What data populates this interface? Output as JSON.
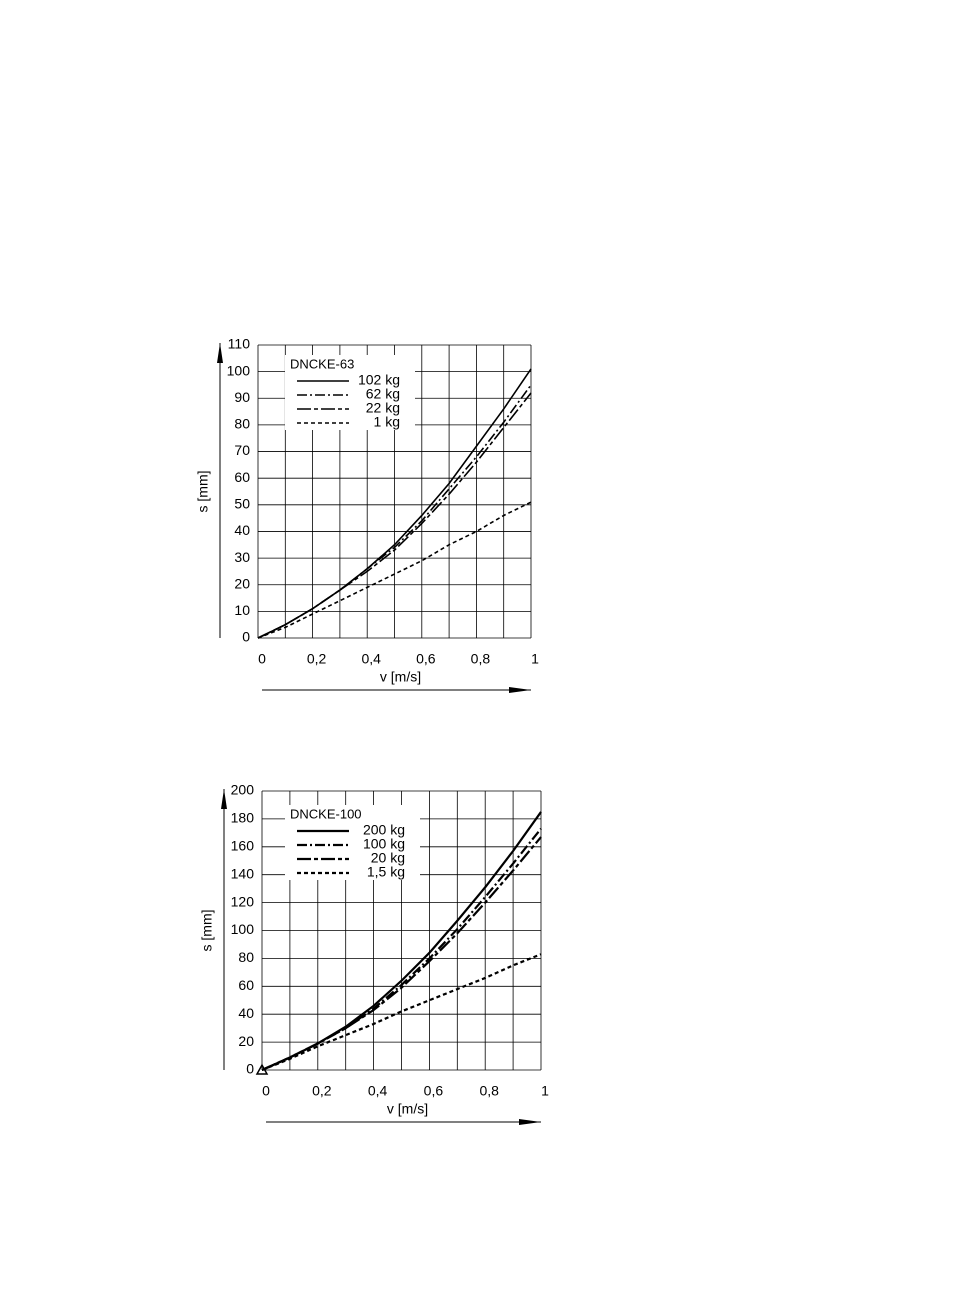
{
  "chart_data": [
    {
      "type": "line",
      "legend_title": "DNCKE-63",
      "xlabel": "v [m/s]",
      "ylabel": "s [mm]",
      "x": [
        0,
        0.1,
        0.2,
        0.3,
        0.4,
        0.5,
        0.6,
        0.7,
        0.8,
        0.9,
        1
      ],
      "series": [
        {
          "name": "102 kg",
          "color": "#000",
          "style": "solid",
          "values": [
            0,
            5,
            11,
            18,
            26,
            35,
            46,
            58,
            72,
            86,
            101
          ]
        },
        {
          "name": "62 kg",
          "color": "#000",
          "style": "dashdot",
          "values": [
            0,
            5,
            11,
            18,
            26,
            34,
            44,
            56,
            68,
            81,
            95
          ]
        },
        {
          "name": "22 kg",
          "color": "#000",
          "style": "longdash",
          "values": [
            0,
            5,
            11,
            18,
            25,
            33,
            43,
            54,
            66,
            79,
            92
          ]
        },
        {
          "name": "1 kg",
          "color": "#000",
          "style": "dash",
          "values": [
            0,
            4,
            9,
            14,
            19,
            24,
            29,
            35,
            40,
            46,
            51
          ]
        }
      ],
      "xlim": [
        0,
        1
      ],
      "ylim": [
        0,
        110
      ],
      "xticks": [
        0,
        {
          "value": 0.2,
          "label": "0,2"
        },
        {
          "value": 0.4,
          "label": "0,4"
        },
        {
          "value": 0.6,
          "label": "0,6"
        },
        {
          "value": 0.8,
          "label": "0,8"
        },
        1
      ],
      "xminorticks": [
        0.1,
        0.3,
        0.5,
        0.7,
        0.9
      ],
      "yticks": [
        0,
        10,
        20,
        30,
        40,
        50,
        60,
        70,
        80,
        90,
        100,
        110
      ],
      "grid": true
    },
    {
      "type": "line",
      "legend_title": "DNCKE-100",
      "xlabel": "v [m/s]",
      "ylabel": "s [mm]",
      "x": [
        0,
        0.1,
        0.2,
        0.3,
        0.4,
        0.5,
        0.6,
        0.7,
        0.8,
        0.9,
        1
      ],
      "series": [
        {
          "name": "200 kg",
          "color": "#000",
          "style": "solid",
          "values": [
            0,
            9,
            19,
            31,
            46,
            64,
            84,
            107,
            131,
            157,
            185
          ]
        },
        {
          "name": "100 kg",
          "color": "#000",
          "style": "dashdot",
          "values": [
            0,
            9,
            19,
            30,
            44,
            61,
            80,
            101,
            124,
            148,
            173
          ]
        },
        {
          "name": "20 kg",
          "color": "#000",
          "style": "longdash",
          "values": [
            0,
            9,
            19,
            30,
            43,
            59,
            78,
            98,
            120,
            143,
            167
          ]
        },
        {
          "name": "1,5 kg",
          "color": "#000",
          "style": "dash",
          "values": [
            0,
            8,
            17,
            25,
            33,
            42,
            50,
            58,
            66,
            75,
            83
          ]
        }
      ],
      "xlim": [
        0,
        1
      ],
      "ylim": [
        0,
        200
      ],
      "xticks": [
        0,
        {
          "value": 0.2,
          "label": "0,2"
        },
        {
          "value": 0.4,
          "label": "0,4"
        },
        {
          "value": 0.6,
          "label": "0,6"
        },
        {
          "value": 0.8,
          "label": "0,8"
        },
        1
      ],
      "xminorticks": [
        0.1,
        0.3,
        0.5,
        0.7,
        0.9
      ],
      "yticks": [
        0,
        20,
        40,
        60,
        80,
        100,
        120,
        140,
        160,
        180,
        200
      ],
      "grid": true
    }
  ]
}
